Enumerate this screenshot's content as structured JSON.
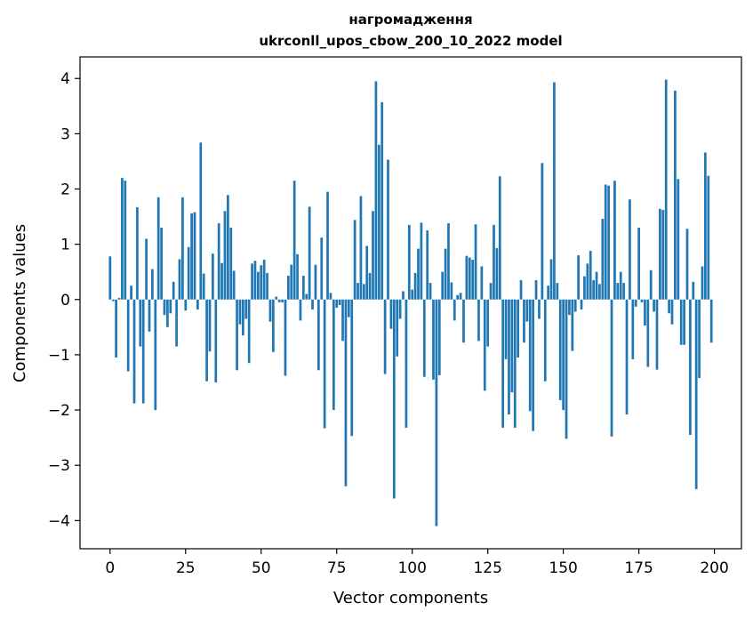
{
  "chart_data": {
    "type": "bar",
    "title": "нагромадження",
    "subtitle": "ukrconll_upos_cbow_200_10_2022 model",
    "xlabel": "Vector components",
    "ylabel": "Components values",
    "xlim": [
      -9.95,
      208.95
    ],
    "ylim": [
      -4.51,
      4.39
    ],
    "xticks": [
      0,
      25,
      50,
      75,
      100,
      125,
      150,
      175,
      200
    ],
    "yticks": [
      -4,
      -3,
      -2,
      -1,
      0,
      1,
      2,
      3,
      4
    ],
    "xtick_labels": [
      "0",
      "25",
      "50",
      "75",
      "100",
      "125",
      "150",
      "175",
      "200"
    ],
    "ytick_labels": [
      "−4",
      "−3",
      "−2",
      "−1",
      "0",
      "1",
      "2",
      "3",
      "4"
    ],
    "color": "#1f77b4",
    "grid": false,
    "x": [
      0,
      1,
      2,
      3,
      4,
      5,
      6,
      7,
      8,
      9,
      10,
      11,
      12,
      13,
      14,
      15,
      16,
      17,
      18,
      19,
      20,
      21,
      22,
      23,
      24,
      25,
      26,
      27,
      28,
      29,
      30,
      31,
      32,
      33,
      34,
      35,
      36,
      37,
      38,
      39,
      40,
      41,
      42,
      43,
      44,
      45,
      46,
      47,
      48,
      49,
      50,
      51,
      52,
      53,
      54,
      55,
      56,
      57,
      58,
      59,
      60,
      61,
      62,
      63,
      64,
      65,
      66,
      67,
      68,
      69,
      70,
      71,
      72,
      73,
      74,
      75,
      76,
      77,
      78,
      79,
      80,
      81,
      82,
      83,
      84,
      85,
      86,
      87,
      88,
      89,
      90,
      91,
      92,
      93,
      94,
      95,
      96,
      97,
      98,
      99,
      100,
      101,
      102,
      103,
      104,
      105,
      106,
      107,
      108,
      109,
      110,
      111,
      112,
      113,
      114,
      115,
      116,
      117,
      118,
      119,
      120,
      121,
      122,
      123,
      124,
      125,
      126,
      127,
      128,
      129,
      130,
      131,
      132,
      133,
      134,
      135,
      136,
      137,
      138,
      139,
      140,
      141,
      142,
      143,
      144,
      145,
      146,
      147,
      148,
      149,
      150,
      151,
      152,
      153,
      154,
      155,
      156,
      157,
      158,
      159,
      160,
      161,
      162,
      163,
      164,
      165,
      166,
      167,
      168,
      169,
      170,
      171,
      172,
      173,
      174,
      175,
      176,
      177,
      178,
      179,
      180,
      181,
      182,
      183,
      184,
      185,
      186,
      187,
      188,
      189,
      190,
      191,
      192,
      193,
      194,
      195,
      196,
      197,
      198,
      199
    ],
    "values": [
      0.78,
      -0.03,
      -1.05,
      0.03,
      2.2,
      2.15,
      -1.3,
      0.25,
      -1.88,
      1.67,
      -0.85,
      -1.88,
      1.1,
      -0.58,
      0.55,
      -2.0,
      1.85,
      1.3,
      -0.28,
      -0.5,
      -0.25,
      0.32,
      -0.85,
      0.73,
      1.85,
      -0.2,
      0.95,
      1.56,
      1.58,
      -0.18,
      2.84,
      0.47,
      -1.48,
      -0.94,
      0.83,
      -1.5,
      1.38,
      0.66,
      1.6,
      1.89,
      1.3,
      0.52,
      -1.28,
      -0.45,
      -0.65,
      -0.35,
      -1.15,
      0.65,
      0.7,
      0.5,
      0.62,
      0.72,
      0.48,
      -0.4,
      -0.95,
      0.05,
      -0.05,
      -0.05,
      -1.38,
      0.43,
      0.63,
      2.15,
      0.82,
      -0.38,
      0.43,
      0.1,
      1.68,
      -0.18,
      0.63,
      -1.28,
      1.12,
      -2.33,
      1.95,
      0.12,
      -2.0,
      -0.15,
      -0.1,
      -0.75,
      -3.38,
      -0.32,
      -2.47,
      1.44,
      0.3,
      1.87,
      0.28,
      0.97,
      0.48,
      1.6,
      3.95,
      2.8,
      3.57,
      -1.35,
      2.53,
      -0.53,
      -3.6,
      -1.03,
      -0.35,
      0.15,
      -2.32,
      1.35,
      0.18,
      0.48,
      0.92,
      1.39,
      -1.4,
      1.25,
      0.3,
      -1.45,
      -4.1,
      -1.37,
      0.5,
      0.92,
      1.38,
      0.31,
      -0.38,
      0.08,
      0.12,
      -0.78,
      0.79,
      0.76,
      0.72,
      1.36,
      -0.75,
      0.6,
      -1.65,
      -0.85,
      0.3,
      1.35,
      0.93,
      2.23,
      -2.32,
      -1.08,
      -2.08,
      -1.68,
      -2.32,
      -1.05,
      0.35,
      -0.78,
      -0.4,
      -2.02,
      -2.38,
      0.35,
      -0.35,
      2.47,
      -1.48,
      0.25,
      0.73,
      3.93,
      0.3,
      -1.82,
      -2.0,
      -2.52,
      -0.28,
      -0.93,
      -0.22,
      0.8,
      -0.18,
      0.42,
      0.65,
      0.88,
      0.35,
      0.5,
      0.28,
      1.46,
      2.08,
      2.06,
      -2.48,
      2.15,
      0.3,
      0.5,
      0.3,
      -2.08,
      1.81,
      -1.08,
      -0.13,
      1.3,
      -0.05,
      -0.47,
      -1.22,
      0.53,
      -0.22,
      -1.27,
      1.64,
      1.62,
      3.98,
      -0.25,
      -0.45,
      3.78,
      2.18,
      -0.82,
      -0.82,
      1.28,
      -2.45,
      0.32,
      -3.43,
      -1.42,
      0.6,
      2.66,
      2.24,
      -0.78
    ]
  }
}
